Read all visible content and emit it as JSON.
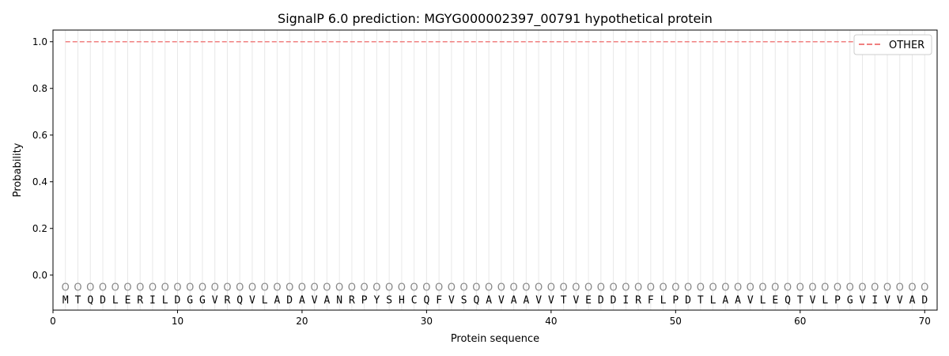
{
  "chart_data": {
    "type": "line",
    "title": "SignalP 6.0 prediction: MGYG000002397_00791 hypothetical protein",
    "xlabel": "Protein sequence",
    "ylabel": "Probability",
    "xlim": [
      0,
      71
    ],
    "ylim": [
      -0.15,
      1.05
    ],
    "xticks": [
      0,
      10,
      20,
      30,
      40,
      50,
      60,
      70
    ],
    "yticks": [
      0.0,
      0.2,
      0.4,
      0.6,
      0.8,
      1.0
    ],
    "ytick_labels": [
      "0.0",
      "0.2",
      "0.4",
      "0.6",
      "0.8",
      "1.0"
    ],
    "grid": "vertical lines at each residue",
    "legend_position": "top-right",
    "sequence": "MTQDLERILDGGVRQVLADAVANRPYSHCQFVSQAVAAVVTVEDDIRFLPDTLAAVLEQTVLPGVIVVAD",
    "region_label": "O",
    "series": [
      {
        "name": "OTHER",
        "color": "#f08080",
        "style": "dashed",
        "x_start": 1,
        "x_end": 70,
        "value": 1.0
      }
    ]
  }
}
